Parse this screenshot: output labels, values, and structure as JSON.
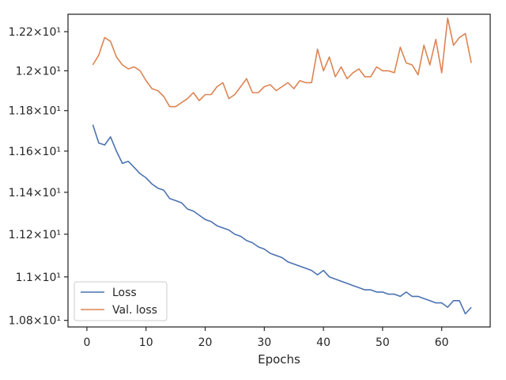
{
  "chart_data": {
    "type": "line",
    "xlabel": "Epochs",
    "ylabel": "",
    "title": "",
    "xlim": [
      -3.2,
      68.2
    ],
    "ylim": [
      10.77,
      12.29
    ],
    "y_scale": "log",
    "xticks": [
      0,
      10,
      20,
      30,
      40,
      50,
      60
    ],
    "xtick_labels": [
      "0",
      "10",
      "20",
      "30",
      "40",
      "50",
      "60"
    ],
    "yticks": [
      10.8,
      11.0,
      11.2,
      11.4,
      11.6,
      11.8,
      12.0,
      12.2
    ],
    "ytick_labels": [
      "1.08×10¹",
      "1.1×10¹",
      "1.12×10¹",
      "1.14×10¹",
      "1.16×10¹",
      "1.18×10¹",
      "1.2×10¹",
      "1.22×10¹"
    ],
    "legend_position": "lower-left",
    "grid": false,
    "x": [
      1,
      2,
      3,
      4,
      5,
      6,
      7,
      8,
      9,
      10,
      11,
      12,
      13,
      14,
      15,
      16,
      17,
      18,
      19,
      20,
      21,
      22,
      23,
      24,
      25,
      26,
      27,
      28,
      29,
      30,
      31,
      32,
      33,
      34,
      35,
      36,
      37,
      38,
      39,
      40,
      41,
      42,
      43,
      44,
      45,
      46,
      47,
      48,
      49,
      50,
      51,
      52,
      53,
      54,
      55,
      56,
      57,
      58,
      59,
      60,
      61,
      62,
      63,
      64,
      65
    ],
    "series": [
      {
        "name": "Loss",
        "color": "#4c72b0",
        "values": [
          11.73,
          11.64,
          11.63,
          11.67,
          11.6,
          11.54,
          11.55,
          11.52,
          11.49,
          11.47,
          11.44,
          11.42,
          11.41,
          11.37,
          11.36,
          11.35,
          11.32,
          11.31,
          11.29,
          11.27,
          11.26,
          11.24,
          11.23,
          11.22,
          11.2,
          11.19,
          11.17,
          11.16,
          11.14,
          11.13,
          11.11,
          11.1,
          11.09,
          11.07,
          11.06,
          11.05,
          11.04,
          11.03,
          11.01,
          11.03,
          11.0,
          10.99,
          10.98,
          10.97,
          10.96,
          10.95,
          10.94,
          10.94,
          10.93,
          10.93,
          10.92,
          10.92,
          10.91,
          10.93,
          10.91,
          10.91,
          10.9,
          10.89,
          10.88,
          10.88,
          10.86,
          10.89,
          10.89,
          10.83,
          10.86
        ]
      },
      {
        "name": "Val. loss",
        "color": "#dd8452",
        "values": [
          12.03,
          12.08,
          12.17,
          12.15,
          12.07,
          12.03,
          12.01,
          12.02,
          12.0,
          11.95,
          11.91,
          11.9,
          11.87,
          11.82,
          11.82,
          11.84,
          11.86,
          11.89,
          11.85,
          11.88,
          11.88,
          11.92,
          11.94,
          11.86,
          11.88,
          11.92,
          11.96,
          11.89,
          11.89,
          11.92,
          11.93,
          11.9,
          11.92,
          11.94,
          11.91,
          11.95,
          11.94,
          11.94,
          12.11,
          12.0,
          12.07,
          11.97,
          12.02,
          11.96,
          11.99,
          12.01,
          11.97,
          11.97,
          12.02,
          12.0,
          12.0,
          11.99,
          12.12,
          12.04,
          12.03,
          11.98,
          12.13,
          12.03,
          12.16,
          11.99,
          12.27,
          12.13,
          12.17,
          12.19,
          12.04
        ]
      }
    ]
  }
}
